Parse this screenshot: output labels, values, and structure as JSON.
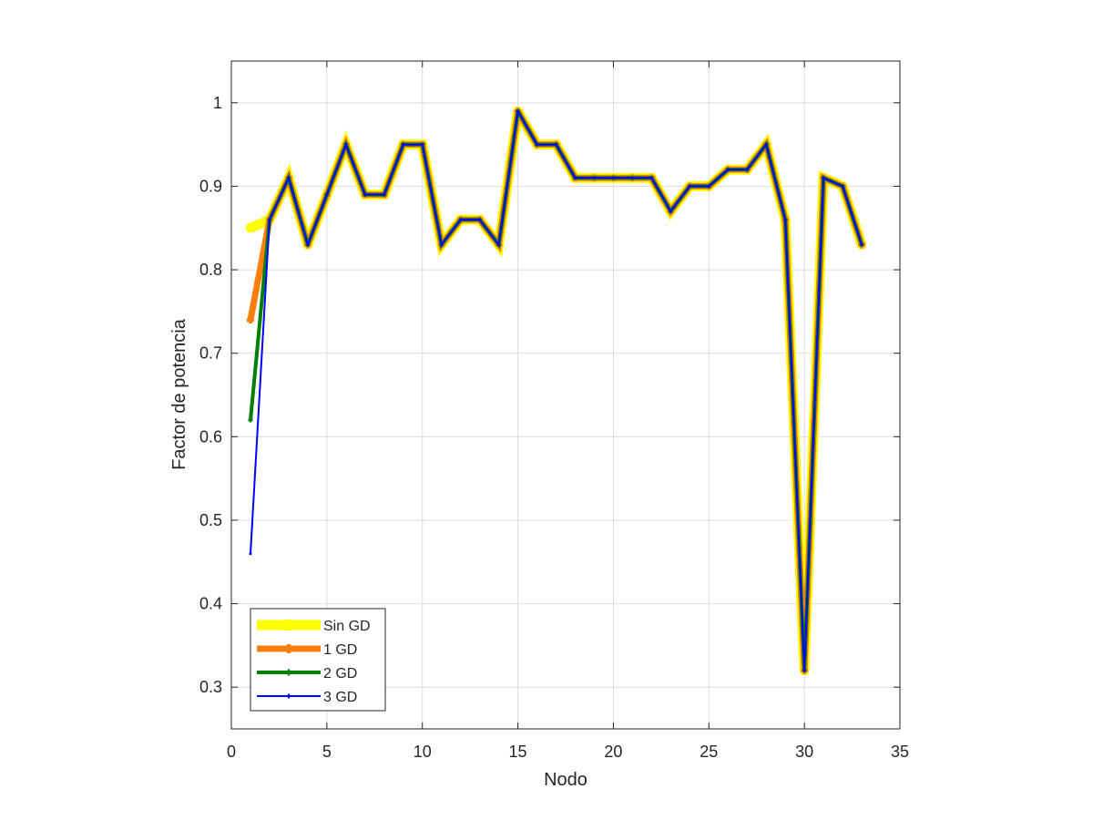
{
  "chart_data": {
    "type": "line",
    "xlabel": "Nodo",
    "ylabel": "Factor de potencia",
    "xlim": [
      0,
      35
    ],
    "ylim": [
      0.25,
      1.05
    ],
    "xticks": [
      0,
      5,
      10,
      15,
      20,
      25,
      30,
      35
    ],
    "yticks": [
      0.3,
      0.4,
      0.5,
      0.6,
      0.7,
      0.8,
      0.9,
      1
    ],
    "xtick_labels": [
      "0",
      "5",
      "10",
      "15",
      "20",
      "25",
      "30",
      "35"
    ],
    "ytick_labels": [
      "0.3",
      "0.4",
      "0.5",
      "0.6",
      "0.7",
      "0.8",
      "0.9",
      "1"
    ],
    "grid": true,
    "legend_position": "bottom-left",
    "x": [
      1,
      2,
      3,
      4,
      5,
      6,
      7,
      8,
      9,
      10,
      11,
      12,
      13,
      14,
      15,
      16,
      17,
      18,
      19,
      20,
      21,
      22,
      23,
      24,
      25,
      26,
      27,
      28,
      29,
      30,
      31,
      32,
      33
    ],
    "series": [
      {
        "name": "Sin GD",
        "color": "#FFFF00",
        "values": [
          0.85,
          0.86,
          0.91,
          0.83,
          0.89,
          0.95,
          0.89,
          0.89,
          0.95,
          0.95,
          0.83,
          0.86,
          0.86,
          0.83,
          0.99,
          0.95,
          0.95,
          0.91,
          0.91,
          0.91,
          0.91,
          0.91,
          0.87,
          0.9,
          0.9,
          0.92,
          0.92,
          0.95,
          0.86,
          0.32,
          0.91,
          0.9,
          0.83
        ]
      },
      {
        "name": "1 GD",
        "color": "#FF7F0E",
        "values": [
          0.74,
          0.86,
          0.91,
          0.83,
          0.89,
          0.95,
          0.89,
          0.89,
          0.95,
          0.95,
          0.83,
          0.86,
          0.86,
          0.83,
          0.99,
          0.95,
          0.95,
          0.91,
          0.91,
          0.91,
          0.91,
          0.91,
          0.87,
          0.9,
          0.9,
          0.92,
          0.92,
          0.95,
          0.86,
          0.32,
          0.91,
          0.9,
          0.83
        ]
      },
      {
        "name": "2 GD",
        "color": "#008000",
        "values": [
          0.62,
          0.86,
          0.91,
          0.83,
          0.89,
          0.95,
          0.89,
          0.89,
          0.95,
          0.95,
          0.83,
          0.86,
          0.86,
          0.83,
          0.99,
          0.95,
          0.95,
          0.91,
          0.91,
          0.91,
          0.91,
          0.91,
          0.87,
          0.9,
          0.9,
          0.92,
          0.92,
          0.95,
          0.86,
          0.32,
          0.91,
          0.9,
          0.83
        ]
      },
      {
        "name": "3 GD",
        "color": "#0000FF",
        "values": [
          0.46,
          0.86,
          0.91,
          0.83,
          0.89,
          0.95,
          0.89,
          0.89,
          0.95,
          0.95,
          0.83,
          0.86,
          0.86,
          0.83,
          0.99,
          0.95,
          0.95,
          0.91,
          0.91,
          0.91,
          0.91,
          0.91,
          0.87,
          0.9,
          0.9,
          0.92,
          0.92,
          0.95,
          0.86,
          0.32,
          0.91,
          0.9,
          0.83
        ]
      }
    ]
  }
}
